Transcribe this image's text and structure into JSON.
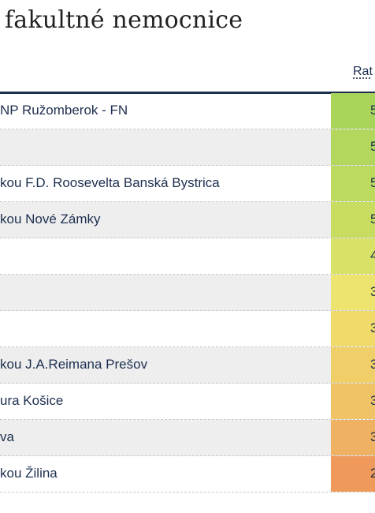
{
  "title": "fakultné nemocnice",
  "header": {
    "rating_label": "Rat"
  },
  "rows": [
    {
      "name": "NP Ružomberok - FN",
      "value": "5",
      "color": "#a9d45a"
    },
    {
      "name": "",
      "value": "5",
      "color": "#b3d75c"
    },
    {
      "name": "kou F.D. Roosevelta Banská Bystrica",
      "value": "5",
      "color": "#bcda5e"
    },
    {
      "name": "kou Nové Zámky",
      "value": "5",
      "color": "#c8dd60"
    },
    {
      "name": "",
      "value": "4",
      "color": "#d8e266"
    },
    {
      "name": "",
      "value": "3",
      "color": "#ece46e"
    },
    {
      "name": "",
      "value": "3",
      "color": "#f0da6a"
    },
    {
      "name": "kou J.A.Reimana Prešov",
      "value": "3",
      "color": "#f0cf68"
    },
    {
      "name": "ura Košice",
      "value": "3",
      "color": "#efc366"
    },
    {
      "name": "va",
      "value": "3",
      "color": "#efb262"
    },
    {
      "name": "kou Žilina",
      "value": "2",
      "color": "#ef9a5a"
    }
  ]
}
